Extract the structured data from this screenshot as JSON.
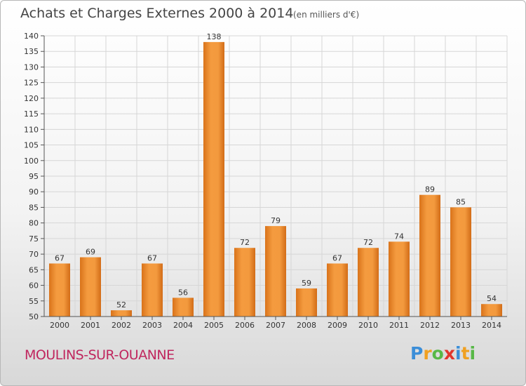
{
  "header": {
    "title": "Achats et Charges Externes 2000 à 2014",
    "subtitle": "(en milliers d'€)"
  },
  "footer": {
    "commune": "MOULINS-SUR-OUANNE",
    "brand": "Proxiti",
    "brand_letters": [
      {
        "ch": "P",
        "color": "#3b8ed8"
      },
      {
        "ch": "r",
        "color": "#f0a021"
      },
      {
        "ch": "o",
        "color": "#58b847"
      },
      {
        "ch": "x",
        "color": "#e2362d"
      },
      {
        "ch": "i",
        "color": "#3b8ed8"
      },
      {
        "ch": "t",
        "color": "#f0a021"
      },
      {
        "ch": "i",
        "color": "#58b847"
      }
    ]
  },
  "chart_data": {
    "type": "bar",
    "title": "Achats et Charges Externes 2000 à 2014",
    "subtitle": "(en milliers d'€)",
    "xlabel": "",
    "ylabel": "",
    "categories": [
      "2000",
      "2001",
      "2002",
      "2003",
      "2004",
      "2005",
      "2006",
      "2007",
      "2008",
      "2009",
      "2010",
      "2011",
      "2012",
      "2013",
      "2014"
    ],
    "values": [
      67,
      69,
      52,
      67,
      56,
      138,
      72,
      79,
      59,
      67,
      72,
      74,
      89,
      85,
      54
    ],
    "ylim": [
      50,
      140
    ],
    "yticks": [
      50,
      55,
      60,
      65,
      70,
      75,
      80,
      85,
      90,
      95,
      100,
      105,
      110,
      115,
      120,
      125,
      130,
      135,
      140
    ],
    "grid": true,
    "bar_color": "#f08c25",
    "grid_color": "#d6d6d6"
  }
}
